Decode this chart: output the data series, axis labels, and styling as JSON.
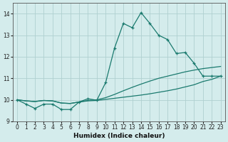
{
  "xlabel": "Humidex (Indice chaleur)",
  "x_values": [
    0,
    1,
    2,
    3,
    4,
    5,
    6,
    7,
    8,
    9,
    10,
    11,
    12,
    13,
    14,
    15,
    16,
    17,
    18,
    19,
    20,
    21,
    22,
    23
  ],
  "line1_y": [
    10.0,
    9.8,
    9.6,
    9.8,
    9.8,
    9.55,
    9.55,
    9.9,
    10.05,
    9.98,
    10.8,
    12.4,
    13.55,
    13.35,
    14.05,
    13.55,
    13.0,
    12.8,
    12.15,
    12.2,
    11.7,
    11.1,
    11.1,
    11.1
  ],
  "line2_y": [
    10.0,
    9.95,
    9.92,
    9.97,
    9.95,
    9.85,
    9.83,
    9.9,
    9.95,
    9.97,
    10.02,
    10.07,
    10.12,
    10.17,
    10.22,
    10.28,
    10.35,
    10.42,
    10.5,
    10.6,
    10.7,
    10.85,
    10.95,
    11.1
  ],
  "line3_y": [
    10.0,
    9.95,
    9.92,
    9.97,
    9.95,
    9.85,
    9.83,
    9.9,
    9.97,
    10.0,
    10.1,
    10.25,
    10.42,
    10.58,
    10.73,
    10.87,
    11.0,
    11.1,
    11.2,
    11.3,
    11.38,
    11.45,
    11.5,
    11.55
  ],
  "line_color": "#1a7a6e",
  "bg_color": "#d4ecec",
  "grid_color": "#afd0d0",
  "ylim": [
    9.0,
    14.5
  ],
  "yticks": [
    9,
    10,
    11,
    12,
    13,
    14
  ],
  "xlim": [
    -0.5,
    23.5
  ]
}
